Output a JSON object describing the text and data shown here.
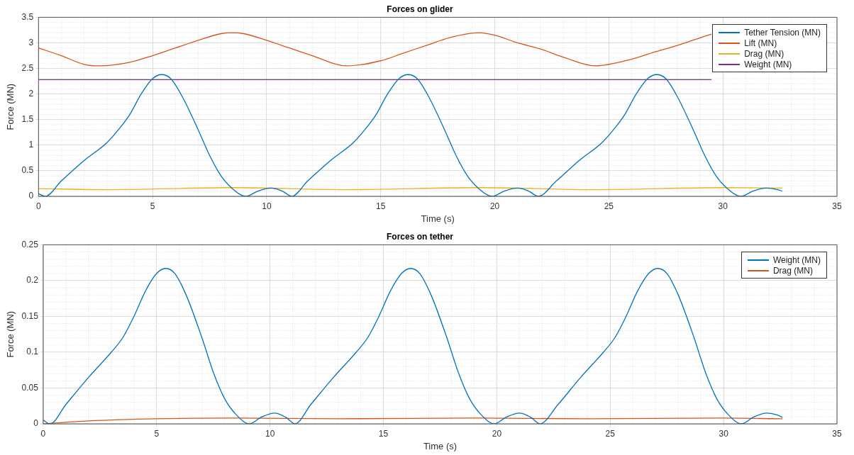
{
  "chart_data": [
    {
      "type": "line",
      "title": "Forces on glider",
      "xlabel": "Time (s)",
      "ylabel": "Force (MN)",
      "xlim": [
        0,
        35
      ],
      "xticks": [
        0,
        5,
        10,
        15,
        20,
        25,
        30,
        35
      ],
      "ylim": [
        0,
        3.5
      ],
      "yticks": [
        0,
        0.5,
        1,
        1.5,
        2,
        2.5,
        3,
        3.5
      ],
      "grid": true,
      "legend": "top right",
      "marker": "none",
      "line_style": "solid",
      "series": [
        {
          "name": "Tether Tension (MN)",
          "color": "#0072bd",
          "x": [
            0,
            0.3,
            1,
            2,
            3,
            3.5,
            4,
            4.5,
            5,
            5.4,
            5.8,
            6.3,
            7,
            7.5,
            8,
            8.5,
            9.1,
            9.6,
            10.2,
            10.7,
            11.1,
            11.8,
            12.8,
            13.8,
            14.3,
            14.8,
            15.3,
            15.8,
            16.2,
            16.6,
            17.1,
            17.8,
            18.3,
            18.8,
            19.3,
            19.9,
            20.4,
            21,
            21.5,
            21.9,
            22.7,
            23.7,
            24.7,
            25.2,
            25.7,
            26.2,
            26.7,
            27.1,
            27.5,
            28,
            28.7,
            29.2,
            29.7,
            30.2,
            30.8,
            31.3,
            31.9,
            32.4,
            32.6
          ],
          "values": [
            0.05,
            0,
            0.3,
            0.7,
            1.05,
            1.3,
            1.6,
            2.0,
            2.3,
            2.38,
            2.3,
            1.95,
            1.3,
            0.8,
            0.4,
            0.15,
            0,
            0.1,
            0.16,
            0.1,
            0,
            0.3,
            0.7,
            1.05,
            1.3,
            1.6,
            2.0,
            2.3,
            2.38,
            2.3,
            1.95,
            1.3,
            0.8,
            0.4,
            0.15,
            0,
            0.1,
            0.16,
            0.1,
            0,
            0.3,
            0.7,
            1.05,
            1.3,
            1.6,
            2.0,
            2.3,
            2.38,
            2.3,
            1.95,
            1.3,
            0.8,
            0.4,
            0.15,
            0,
            0.1,
            0.16,
            0.13,
            0.1
          ]
        },
        {
          "name": "Lift (MN)",
          "color": "#d95319",
          "x": [
            0,
            1,
            2,
            2.7,
            4,
            5,
            6,
            7,
            8,
            8.5,
            9,
            10,
            11,
            12,
            13.5,
            15,
            16,
            17,
            18,
            19.3,
            20,
            21,
            22,
            23,
            24.4,
            26,
            27,
            28,
            29,
            29.5
          ],
          "values": [
            2.9,
            2.75,
            2.58,
            2.55,
            2.62,
            2.75,
            2.9,
            3.05,
            3.18,
            3.2,
            3.18,
            3.05,
            2.9,
            2.75,
            2.55,
            2.65,
            2.8,
            2.95,
            3.1,
            3.2,
            3.15,
            3.0,
            2.88,
            2.72,
            2.55,
            2.68,
            2.82,
            2.95,
            3.1,
            3.17
          ]
        },
        {
          "name": "Drag (MN)",
          "color": "#edb120",
          "x": [
            0,
            3,
            8.5,
            13.5,
            19.3,
            24.4,
            30,
            32.6
          ],
          "values": [
            0.15,
            0.13,
            0.17,
            0.13,
            0.17,
            0.13,
            0.17,
            0.16
          ]
        },
        {
          "name": "Weight (MN)",
          "color": "#7e2f8e",
          "x": [
            0,
            29.5
          ],
          "values": [
            2.28,
            2.28
          ]
        }
      ]
    },
    {
      "type": "line",
      "title": "Forces on tether",
      "xlabel": "Time (s)",
      "ylabel": "Force (MN)",
      "xlim": [
        0,
        35
      ],
      "xticks": [
        0,
        5,
        10,
        15,
        20,
        25,
        30,
        35
      ],
      "ylim": [
        0,
        0.25
      ],
      "yticks": [
        0,
        0.05,
        0.1,
        0.15,
        0.2,
        0.25
      ],
      "grid": true,
      "legend": "top right",
      "marker": "none",
      "line_style": "solid",
      "series": [
        {
          "name": "Weight (MN)",
          "color": "#0072bd",
          "x": [
            0,
            0.3,
            1,
            2,
            3,
            3.5,
            4,
            4.5,
            5,
            5.4,
            5.8,
            6.3,
            7,
            7.5,
            8,
            8.5,
            9.1,
            9.6,
            10.2,
            10.7,
            11.1,
            11.8,
            12.8,
            13.8,
            14.3,
            14.8,
            15.3,
            15.8,
            16.2,
            16.6,
            17.1,
            17.8,
            18.3,
            18.8,
            19.3,
            19.9,
            20.4,
            21,
            21.5,
            21.9,
            22.7,
            23.7,
            24.7,
            25.2,
            25.7,
            26.2,
            26.7,
            27.1,
            27.5,
            28,
            28.7,
            29.2,
            29.7,
            30.2,
            30.8,
            31.3,
            31.9,
            32.4,
            32.6
          ],
          "values": [
            0.005,
            0,
            0.027,
            0.065,
            0.1,
            0.12,
            0.15,
            0.185,
            0.21,
            0.217,
            0.21,
            0.18,
            0.12,
            0.072,
            0.035,
            0.013,
            0,
            0.009,
            0.015,
            0.009,
            0,
            0.027,
            0.065,
            0.1,
            0.12,
            0.15,
            0.185,
            0.21,
            0.217,
            0.21,
            0.18,
            0.12,
            0.072,
            0.035,
            0.013,
            0,
            0.009,
            0.015,
            0.009,
            0,
            0.027,
            0.065,
            0.1,
            0.12,
            0.15,
            0.185,
            0.21,
            0.217,
            0.21,
            0.18,
            0.12,
            0.072,
            0.035,
            0.013,
            0,
            0.009,
            0.015,
            0.012,
            0.009
          ]
        },
        {
          "name": "Drag (MN)",
          "color": "#d95319",
          "x": [
            0,
            2,
            5,
            8.5,
            13,
            19,
            24,
            30,
            32.6
          ],
          "values": [
            0,
            0.004,
            0.007,
            0.008,
            0.007,
            0.008,
            0.007,
            0.008,
            0.007
          ]
        }
      ]
    }
  ]
}
